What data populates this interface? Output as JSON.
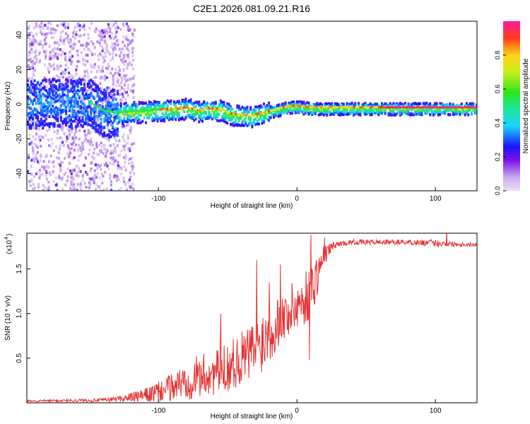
{
  "title": "C2E1.2026.081.09.21.R16",
  "chart_data": [
    {
      "type": "heatmap",
      "name": "spectrogram",
      "xlabel": "Height of straight line (km)",
      "ylabel": "Frequency (Hz)",
      "xlim": [
        -195,
        130
      ],
      "ylim": [
        -50,
        48
      ],
      "xticks": [
        -100,
        0,
        100
      ],
      "yticks": [
        -40,
        -20,
        0,
        20,
        40
      ],
      "ridge": {
        "x": [
          -195,
          -170,
          -150,
          -140,
          -130,
          -120,
          -110,
          -100,
          -90,
          -80,
          -75,
          -70,
          -65,
          -60,
          -55,
          -50,
          -45,
          -40,
          -35,
          -30,
          -25,
          -20,
          -15,
          -10,
          -5,
          0,
          10,
          20,
          40,
          60,
          80,
          100,
          130
        ],
        "freq": [
          0,
          2,
          1,
          -4,
          -5,
          -4,
          -4,
          -3,
          -3,
          -2,
          -3,
          -4,
          -2,
          -3,
          -3,
          -5,
          -6,
          -6,
          -7,
          -6,
          -5,
          -4,
          -3,
          -2,
          -1,
          -1,
          -2,
          -2,
          -2,
          -2,
          -2,
          -2,
          -2
        ]
      },
      "colorbar": {
        "label": "Normalized spectral amplitude",
        "ticks": [
          "0.0",
          "0.2",
          "0.4",
          "0.6",
          "0.8"
        ],
        "tick_values": [
          0,
          0.2,
          0.4,
          0.6,
          0.8
        ],
        "range": [
          0,
          1
        ]
      }
    },
    {
      "type": "line",
      "name": "snr",
      "xlabel": "Height of straight line (km)",
      "ylabel": "SNR (10 * v/v)",
      "yscale_label": "(x10",
      "yscale_exp": "4",
      "xlim": [
        -195,
        130
      ],
      "ylim": [
        0,
        1.9
      ],
      "xticks": [
        -100,
        0,
        100
      ],
      "yticks": [
        "0.5",
        "1.0",
        "1.5"
      ],
      "ytick_values": [
        0.5,
        1.0,
        1.5
      ],
      "color": "#e53232",
      "envelope": {
        "x": [
          -195,
          -140,
          -125,
          -110,
          -100,
          -90,
          -80,
          -70,
          -60,
          -50,
          -40,
          -30,
          -20,
          -10,
          0,
          5,
          10,
          15,
          20,
          25,
          30,
          40,
          60,
          80,
          100,
          110,
          130
        ],
        "base": [
          0.02,
          0.03,
          0.05,
          0.08,
          0.12,
          0.18,
          0.25,
          0.3,
          0.33,
          0.4,
          0.5,
          0.6,
          0.8,
          0.95,
          1.1,
          1.15,
          1.25,
          1.45,
          1.65,
          1.75,
          1.78,
          1.8,
          1.8,
          1.8,
          1.79,
          1.78,
          1.77
        ],
        "amp": [
          0.01,
          0.02,
          0.04,
          0.08,
          0.12,
          0.16,
          0.22,
          0.25,
          0.25,
          0.28,
          0.3,
          0.35,
          0.35,
          0.3,
          0.3,
          0.3,
          0.3,
          0.25,
          0.12,
          0.05,
          0.03,
          0.03,
          0.03,
          0.03,
          0.04,
          0.03,
          0.02
        ]
      },
      "peaks": [
        {
          "x": -55,
          "y": 1.0
        },
        {
          "x": -29,
          "y": 1.6
        },
        {
          "x": -20,
          "y": 1.35
        },
        {
          "x": -12,
          "y": 1.55
        },
        {
          "x": 10,
          "y": 1.88
        },
        {
          "x": 9,
          "y": 0.48
        },
        {
          "x": 20,
          "y": 1.85
        },
        {
          "x": 108,
          "y": 1.92
        }
      ]
    }
  ]
}
